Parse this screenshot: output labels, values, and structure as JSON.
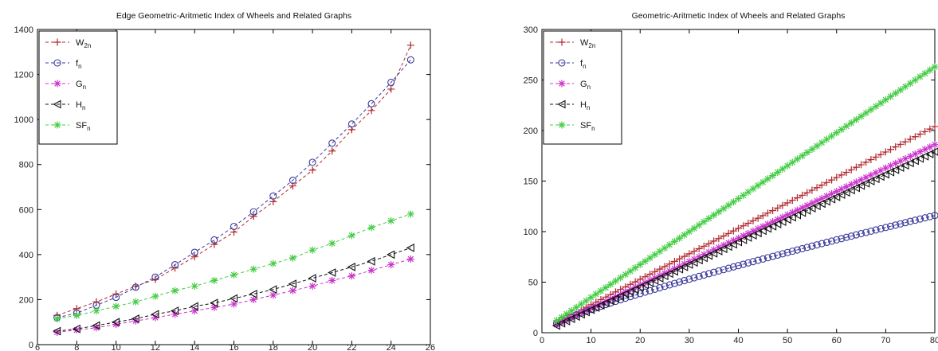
{
  "chart_data": [
    {
      "type": "line",
      "title": "Edge Geometric-Aritmetic Index of Wheels and Related Graphs",
      "xlabel": "",
      "ylabel": "",
      "xlim": [
        6,
        26
      ],
      "ylim": [
        0,
        1400
      ],
      "xticks": [
        "6",
        "8",
        "10",
        "12",
        "14",
        "16",
        "18",
        "20",
        "22",
        "24",
        "26"
      ],
      "yticks": [
        "0",
        "200",
        "400",
        "600",
        "800",
        "1000",
        "1200",
        "1400"
      ],
      "legend_position": "top-left",
      "grid": false,
      "x": [
        7,
        8,
        9,
        10,
        11,
        12,
        13,
        14,
        15,
        16,
        17,
        18,
        19,
        20,
        21,
        22,
        23,
        24,
        25
      ],
      "series": [
        {
          "name": "W",
          "sub": "2n",
          "color": "#b0282e",
          "marker": "plus",
          "values": [
            130,
            160,
            190,
            225,
            260,
            290,
            340,
            390,
            445,
            500,
            570,
            635,
            705,
            775,
            860,
            955,
            1040,
            1135,
            1330
          ]
        },
        {
          "name": "f",
          "sub": "n",
          "color": "#3a3a9c",
          "marker": "circle",
          "values": [
            120,
            140,
            175,
            210,
            255,
            300,
            355,
            410,
            465,
            525,
            590,
            660,
            730,
            810,
            895,
            980,
            1070,
            1165,
            1265
          ]
        },
        {
          "name": "G",
          "sub": "n",
          "color": "#cc33cc",
          "marker": "star",
          "values": [
            55,
            65,
            75,
            90,
            105,
            120,
            135,
            150,
            165,
            180,
            200,
            220,
            240,
            260,
            285,
            305,
            330,
            355,
            380
          ]
        },
        {
          "name": "H",
          "sub": "n",
          "color": "#111111",
          "marker": "triangle",
          "values": [
            60,
            70,
            85,
            100,
            115,
            135,
            150,
            170,
            185,
            205,
            225,
            245,
            270,
            295,
            320,
            345,
            370,
            400,
            430
          ]
        },
        {
          "name": "SF",
          "sub": "n",
          "color": "#44cc44",
          "marker": "star",
          "values": [
            115,
            130,
            150,
            170,
            190,
            215,
            240,
            260,
            285,
            310,
            335,
            360,
            385,
            420,
            450,
            485,
            520,
            550,
            580
          ]
        }
      ]
    },
    {
      "type": "line",
      "title": "Geometric-Aritmetic Index of Wheels and Related Graphs",
      "xlabel": "",
      "ylabel": "",
      "xlim": [
        0,
        80
      ],
      "ylim": [
        0,
        300
      ],
      "xticks": [
        "0",
        "10",
        "20",
        "30",
        "40",
        "50",
        "60",
        "70",
        "80"
      ],
      "yticks": [
        "0",
        "50",
        "100",
        "150",
        "200",
        "250",
        "300"
      ],
      "legend_position": "top-left",
      "grid": false,
      "x_range": [
        3,
        80
      ],
      "series": [
        {
          "name": "W",
          "sub": "2n",
          "color": "#b0282e",
          "marker": "plus",
          "start": 10,
          "end": 204
        },
        {
          "name": "f",
          "sub": "n",
          "color": "#3a3a9c",
          "marker": "circle",
          "start": 9,
          "end": 116
        },
        {
          "name": "G",
          "sub": "n",
          "color": "#cc33cc",
          "marker": "star",
          "start": 8,
          "end": 186
        },
        {
          "name": "H",
          "sub": "n",
          "color": "#111111",
          "marker": "triangle",
          "start": 7,
          "end": 179
        },
        {
          "name": "SF",
          "sub": "n",
          "color": "#44cc44",
          "marker": "star",
          "start": 12,
          "end": 263
        }
      ]
    }
  ]
}
